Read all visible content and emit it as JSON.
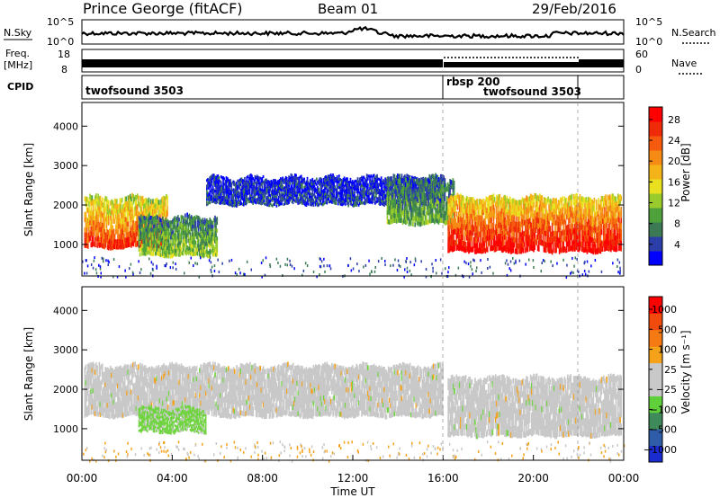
{
  "header": {
    "station": "Prince George (fitACF)",
    "beam": "Beam 01",
    "date": "29/Feb/2016"
  },
  "top_panels": {
    "nsky_label": "N.Sky",
    "nsky_ticks": [
      "10^5",
      "10^0"
    ],
    "nsearch_label": "N.Search",
    "nsearch_ticks": [
      "10^5",
      "10^0"
    ],
    "freq_label": "Freq.",
    "freq_unit": "[MHz]",
    "freq_ticks": [
      "18",
      "8"
    ],
    "nave_label": "Nave",
    "nave_ticks": [
      "60",
      "0"
    ],
    "cpid_label": "CPID",
    "cpid_segments": [
      {
        "name": "twofsound 3503",
        "start_hour": 0,
        "end_hour": 16
      },
      {
        "name": "rbsp 200",
        "start_hour": 16,
        "end_hour": 21.9
      },
      {
        "name": "twofsound 3503",
        "start_hour": 16,
        "end_hour": 21.9
      }
    ]
  },
  "chart_data": [
    {
      "type": "heatmap",
      "quantity": "power",
      "ylabel": "Slant Range [km]",
      "xlabel": "",
      "xlim": [
        0,
        24
      ],
      "ylim": [
        200,
        4600
      ],
      "y_ticks": [
        "1000",
        "2000",
        "3000",
        "4000"
      ],
      "colorbar_label": "Power [dB]",
      "colorbar_ticks": [
        "4",
        "8",
        "12",
        "16",
        "20",
        "24",
        "28"
      ],
      "colorbar_colors": [
        "#0000ff",
        "#2c3ea8",
        "#3b7a55",
        "#4fa23b",
        "#9acb2c",
        "#e9e020",
        "#f5b31a",
        "#f58a14",
        "#f55a0e",
        "#ee2a08",
        "#ff0000"
      ],
      "regions": [
        {
          "t0": 0.1,
          "t1": 3.8,
          "r0": 900,
          "r1": 2200,
          "level": 0.75
        },
        {
          "t0": 2.5,
          "t1": 6.0,
          "r0": 700,
          "r1": 1700,
          "level": 0.35
        },
        {
          "t0": 5.5,
          "t1": 16.0,
          "r0": 2000,
          "r1": 2700,
          "level": 0.12
        },
        {
          "t0": 13.5,
          "t1": 16.5,
          "r0": 1500,
          "r1": 2700,
          "level": 0.3
        },
        {
          "t0": 16.2,
          "t1": 23.9,
          "r0": 800,
          "r1": 2200,
          "level": 0.85
        }
      ]
    },
    {
      "type": "heatmap",
      "quantity": "velocity",
      "ylabel": "Slant Range [km]",
      "xlabel": "Time UT",
      "xlim": [
        0,
        24
      ],
      "ylim": [
        200,
        4600
      ],
      "x_ticks": [
        "00:00",
        "04:00",
        "08:00",
        "12:00",
        "16:00",
        "20:00",
        "00:00"
      ],
      "y_ticks": [
        "1000",
        "2000",
        "3000",
        "4000"
      ],
      "colorbar_label": "Velocity [m s⁻¹]",
      "colorbar_ticks": [
        "1000",
        "500",
        "100",
        "25",
        "−25",
        "−100",
        "−500",
        "−1000"
      ],
      "colorbar_colors": [
        "#1a2bd0",
        "#2f5ca8",
        "#3f8a5a",
        "#5fcf3a",
        "#c8c8c8",
        "#c8c8c8",
        "#f5a21a",
        "#f57a14",
        "#f04a0c",
        "#ff0000"
      ],
      "regions": [
        {
          "t0": 0.1,
          "t1": 16.0,
          "r0": 1300,
          "r1": 2600,
          "color": "gray"
        },
        {
          "t0": 2.5,
          "t1": 5.5,
          "r0": 900,
          "r1": 1500,
          "color": "green"
        },
        {
          "t0": 16.2,
          "t1": 23.9,
          "r0": 800,
          "r1": 2300,
          "color": "gray"
        }
      ]
    }
  ]
}
